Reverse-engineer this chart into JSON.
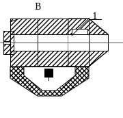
{
  "title": "B",
  "label1": "1",
  "bg_color": "#ffffff",
  "line_color": "#000000",
  "figsize": [
    1.8,
    1.72
  ],
  "dpi": 100,
  "lw": 0.7
}
